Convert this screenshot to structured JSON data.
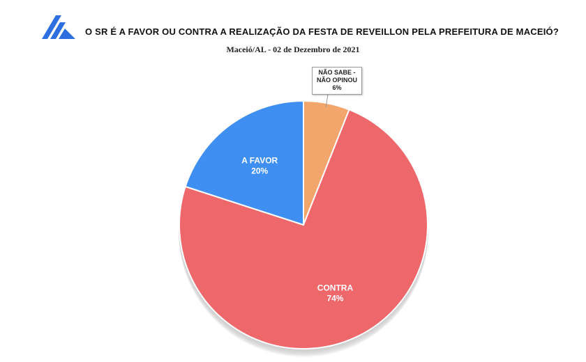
{
  "header": {
    "title": "O SR É A FAVOR OU CONTRA A REALIZAÇÃO DA FESTA DE REVEILLON PELA PREFEITURA DE MACEIÓ?",
    "subtitle": "Maceió/AL - 02 de Dezembro de 2021"
  },
  "chart_data": {
    "type": "pie",
    "title": "O SR É A FAVOR OU CONTRA A REALIZAÇÃO DA FESTA DE REVEILLON PELA PREFEITURA DE MACEIÓ?",
    "subtitle": "Maceió/AL - 02 de Dezembro de 2021",
    "slices": [
      {
        "label": "NÃO SABE - NÃO OPINOU",
        "label_lines": [
          "NÃO SABE  -",
          "NÃO OPINOU"
        ],
        "value": 6,
        "value_label": "6%",
        "color": "#F2A66C"
      },
      {
        "label": "CONTRA",
        "value": 74,
        "value_label": "74%",
        "color": "#EE676B"
      },
      {
        "label": "A FAVOR",
        "value": 20,
        "value_label": "20%",
        "color": "#3F8FF3"
      }
    ],
    "label_text_color": "#ffffff",
    "legend": "none"
  },
  "colors": {
    "logo": "#2D6FE0",
    "shadow": "#BDBDBD"
  }
}
